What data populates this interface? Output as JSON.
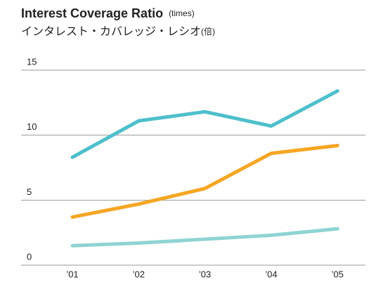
{
  "chart_data": {
    "type": "line",
    "title": "Interest Coverage Ratio",
    "title_unit": "(times)",
    "subtitle": "インタレスト・カバレッジ・レシオ",
    "subtitle_unit": "(倍)",
    "categories": [
      "’01",
      "’02",
      "’03",
      "’04",
      "’05"
    ],
    "series": [
      {
        "color": "#4dbfcb",
        "values": [
          8.3,
          11.1,
          11.8,
          10.7,
          13.4
        ]
      },
      {
        "color": "#f5a623",
        "values": [
          3.7,
          4.7,
          5.9,
          8.6,
          9.2
        ]
      },
      {
        "color": "#8fd4d4",
        "values": [
          1.5,
          1.7,
          2.0,
          2.3,
          2.8
        ]
      }
    ],
    "ylim": [
      0,
      15
    ],
    "yticks": [
      0,
      5,
      10,
      15
    ],
    "grid": true
  }
}
